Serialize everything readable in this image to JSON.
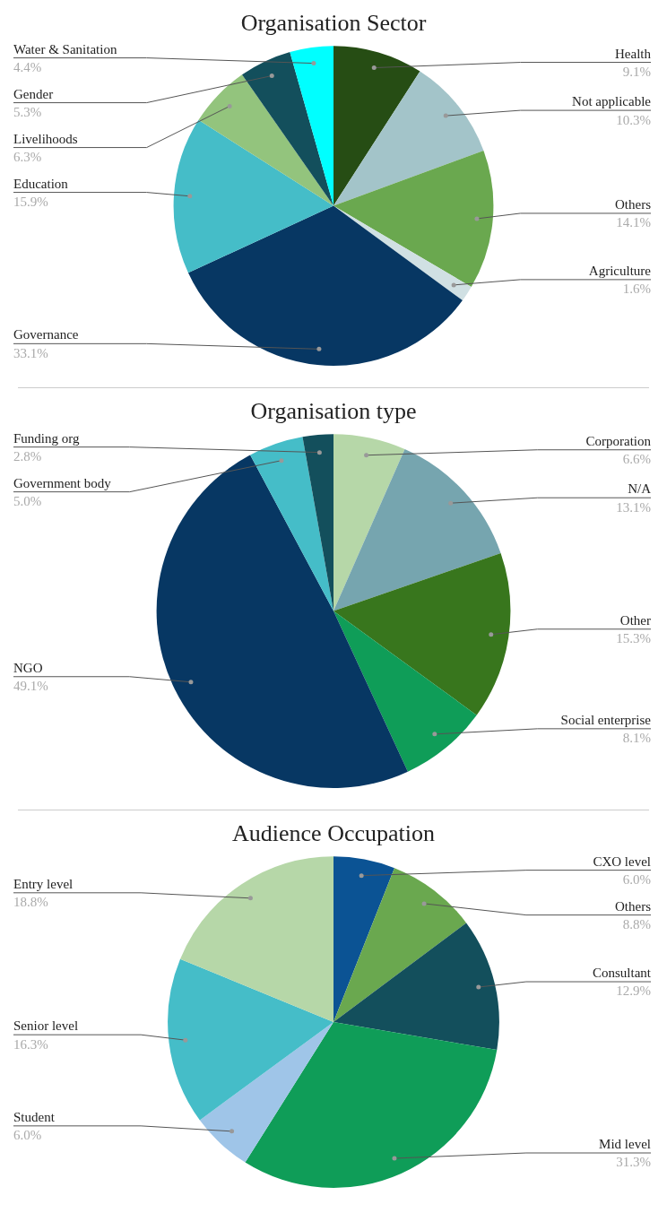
{
  "chart_data": [
    {
      "type": "pie",
      "title": "Organisation Sector",
      "categories": [
        "Health",
        "Not applicable",
        "Others",
        "Agriculture",
        "Governance",
        "Education",
        "Livelihoods",
        "Gender",
        "Water & Sanitation"
      ],
      "values": [
        9.1,
        10.3,
        14.1,
        1.6,
        33.1,
        15.9,
        6.3,
        5.3,
        4.4
      ],
      "value_labels": [
        "9.1%",
        "10.3%",
        "14.1%",
        "1.6%",
        "33.1%",
        "15.9%",
        "6.3%",
        "5.3%",
        "4.4%"
      ],
      "colors": [
        "#264d14",
        "#a3c4c9",
        "#6aa84f",
        "#d0e0e3",
        "#073763",
        "#45bdc8",
        "#93c47d",
        "#134f5c",
        "#00ffff"
      ],
      "legend": false
    },
    {
      "type": "pie",
      "title": "Organisation type",
      "categories": [
        "Corporation",
        "N/A",
        "Other",
        "Social enterprise",
        "NGO",
        "Government body",
        "Funding org"
      ],
      "values": [
        6.6,
        13.1,
        15.3,
        8.1,
        49.1,
        5.0,
        2.8
      ],
      "value_labels": [
        "6.6%",
        "13.1%",
        "15.3%",
        "8.1%",
        "49.1%",
        "5.0%",
        "2.8%"
      ],
      "colors": [
        "#b6d7a8",
        "#76a5af",
        "#38761d",
        "#0f9d58",
        "#073763",
        "#45bdc8",
        "#134f5c"
      ],
      "legend": false
    },
    {
      "type": "pie",
      "title": "Audience Occupation",
      "categories": [
        "CXO level",
        "Others",
        "Consultant",
        "Mid level",
        "Student",
        "Senior level",
        "Entry level"
      ],
      "values": [
        6.0,
        8.8,
        12.9,
        31.3,
        6.0,
        16.3,
        18.8
      ],
      "value_labels": [
        "6.0%",
        "8.8%",
        "12.9%",
        "31.3%",
        "6.0%",
        "16.3%",
        "18.8%"
      ],
      "colors": [
        "#0b5394",
        "#6aa84f",
        "#134f5c",
        "#0f9d58",
        "#9fc5e8",
        "#45bdc8",
        "#b6d7a8"
      ],
      "legend": false
    }
  ]
}
